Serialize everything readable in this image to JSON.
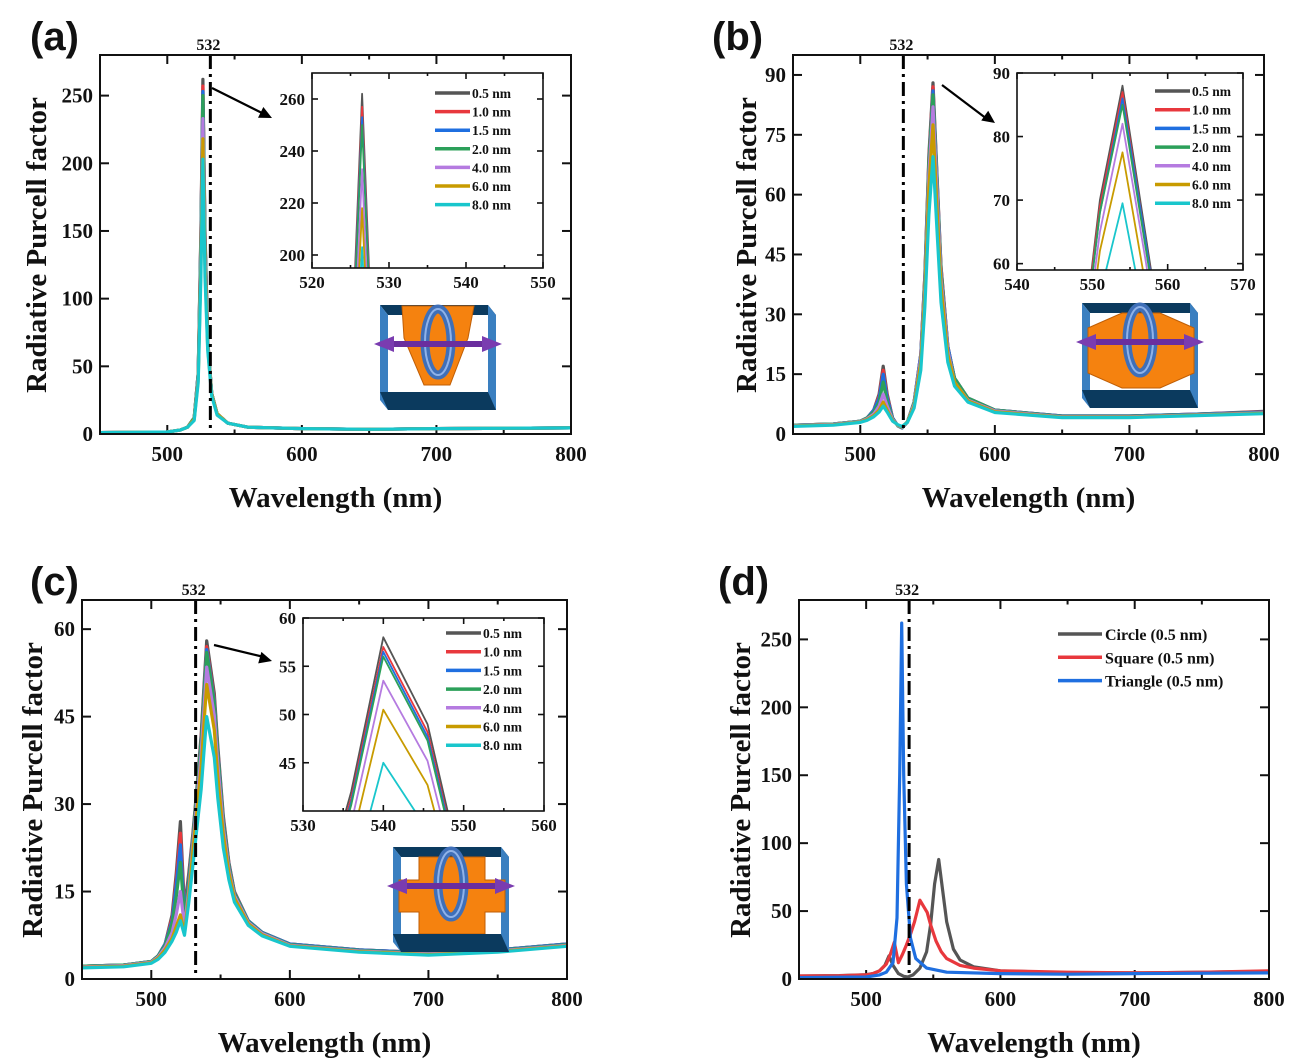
{
  "series_colors": {
    "0.5 nm": "#555555",
    "1.0 nm": "#e8383d",
    "1.5 nm": "#1f6fe0",
    "2.0 nm": "#2ca05a",
    "4.0 nm": "#b57be0",
    "6.0 nm": "#c89b00",
    "8.0 nm": "#19c6cc",
    "Circle (0.5 nm)": "#555555",
    "Square (0.5 nm)": "#e8383d",
    "Triangle (0.5 nm)": "#1f6fe0"
  },
  "chart_data": [
    {
      "panel_label": "(a)",
      "type": "line",
      "xlabel": "Wavelength (nm)",
      "ylabel": "Radiative Purcell factor",
      "xlim": [
        450,
        800
      ],
      "ylim": [
        0,
        280
      ],
      "xticks": [
        500,
        600,
        700,
        800
      ],
      "yticks": [
        0,
        50,
        100,
        150,
        200,
        250
      ],
      "vline": {
        "x": 532,
        "label": "532",
        "style": "dash-dot"
      },
      "illustration": "triangle-nanostructure-with-ring-and-dipole",
      "x": [
        450,
        500,
        510,
        515,
        520,
        523,
        525,
        526.5,
        528,
        530,
        533,
        537,
        545,
        560,
        600,
        650,
        700,
        800
      ],
      "series": [
        {
          "name": "0.5 nm",
          "values": [
            1,
            1.5,
            3,
            5,
            12,
            45,
            150,
            262,
            150,
            70,
            30,
            15,
            8,
            5,
            4,
            3.5,
            4,
            4.5
          ]
        },
        {
          "name": "1.0 nm",
          "values": [
            1,
            1.5,
            3,
            5,
            12,
            45,
            147,
            257,
            147,
            69,
            30,
            15,
            8,
            5,
            4,
            3.5,
            4,
            4.5
          ]
        },
        {
          "name": "1.5 nm",
          "values": [
            1,
            1.5,
            3,
            5,
            12,
            45,
            145,
            253,
            145,
            68,
            30,
            15,
            8,
            5,
            4,
            3.5,
            4,
            4.5
          ]
        },
        {
          "name": "2.0 nm",
          "values": [
            1,
            1.5,
            3,
            5,
            12,
            44,
            143,
            250,
            143,
            68,
            30,
            15,
            8,
            5,
            4,
            3.5,
            4,
            4.5
          ]
        },
        {
          "name": "4.0 nm",
          "values": [
            1,
            1.5,
            3,
            5,
            11,
            42,
            133,
            233,
            133,
            66,
            29,
            15,
            8,
            5,
            4,
            3.5,
            4,
            4.5
          ]
        },
        {
          "name": "6.0 nm",
          "values": [
            1,
            1.5,
            3,
            5,
            11,
            40,
            125,
            218,
            125,
            64,
            29,
            15,
            8,
            5,
            4,
            3.5,
            4,
            4.5
          ]
        },
        {
          "name": "8.0 nm",
          "values": [
            1,
            1.5,
            3,
            5,
            10,
            38,
            116,
            203,
            116,
            62,
            28,
            14,
            8,
            5,
            4,
            3.5,
            4,
            4.5
          ]
        }
      ],
      "inset": {
        "xlim": [
          520,
          550
        ],
        "ylim": [
          195,
          270
        ],
        "xticks": [
          520,
          530,
          540,
          550
        ],
        "yticks": [
          200,
          220,
          240,
          260
        ],
        "legend": "top-right"
      }
    },
    {
      "panel_label": "(b)",
      "type": "line",
      "xlabel": "Wavelength (nm)",
      "ylabel": "Radiative Purcell factor",
      "xlim": [
        450,
        800
      ],
      "ylim": [
        0,
        95
      ],
      "xticks": [
        500,
        600,
        700,
        800
      ],
      "yticks": [
        0,
        15,
        30,
        45,
        60,
        75,
        90
      ],
      "vline": {
        "x": 532,
        "label": "532",
        "style": "dash-dot"
      },
      "illustration": "circle-nanostructure-with-ring-and-dipole",
      "x": [
        450,
        480,
        500,
        505,
        510,
        514,
        517,
        520,
        524,
        528,
        531,
        535,
        540,
        545,
        548,
        551,
        554,
        557,
        560,
        565,
        570,
        580,
        600,
        650,
        700,
        750,
        800
      ],
      "series": [
        {
          "name": "0.5 nm",
          "values": [
            2.2,
            2.5,
            3.2,
            4,
            6,
            10,
            17,
            10,
            4,
            2,
            1.5,
            3,
            8,
            20,
            40,
            70,
            88,
            65,
            42,
            22,
            14,
            9,
            6,
            4.5,
            4.5,
            5,
            5.7
          ]
        },
        {
          "name": "1.0 nm",
          "values": [
            2.2,
            2.5,
            3.2,
            4,
            6,
            9.5,
            16,
            9.5,
            4,
            2,
            1.5,
            3,
            8,
            20,
            40,
            69,
            87,
            64,
            42,
            22,
            14,
            9,
            6,
            4.5,
            4.5,
            5,
            5.6
          ]
        },
        {
          "name": "1.5 nm",
          "values": [
            2.2,
            2.5,
            3.2,
            4,
            6,
            9,
            15,
            9,
            4,
            2,
            1.5,
            3,
            8,
            20,
            39,
            68,
            86,
            64,
            41,
            22,
            14,
            9,
            6,
            4.5,
            4.5,
            5,
            5.5
          ]
        },
        {
          "name": "2.0 nm",
          "values": [
            2.2,
            2.5,
            3.2,
            4,
            5.5,
            8,
            13,
            8,
            3.8,
            2,
            1.6,
            3,
            8,
            19,
            39,
            68,
            85,
            63,
            41,
            21,
            14,
            9,
            6,
            4.4,
            4.4,
            4.9,
            5.4
          ]
        },
        {
          "name": "4.0 nm",
          "values": [
            2.1,
            2.4,
            3.1,
            3.8,
            5,
            7,
            10,
            7,
            3.6,
            2.1,
            1.7,
            3,
            7.5,
            19,
            37,
            65,
            82,
            61,
            39,
            21,
            13,
            8.5,
            5.8,
            4.3,
            4.3,
            4.8,
            5.3
          ]
        },
        {
          "name": "6.0 nm",
          "values": [
            2,
            2.3,
            3,
            3.6,
            4.6,
            6,
            8,
            6,
            3.4,
            2.2,
            1.8,
            3,
            7,
            18,
            35,
            62,
            77.5,
            57,
            37,
            20,
            13,
            8.3,
            5.6,
            4.2,
            4.2,
            4.7,
            5.2
          ]
        },
        {
          "name": "8.0 nm",
          "values": [
            1.9,
            2.2,
            2.9,
            3.4,
            4.3,
            5.5,
            7,
            5.5,
            3.2,
            2.3,
            1.9,
            2.9,
            6.5,
            16,
            32,
            55,
            69.5,
            51,
            33,
            18,
            12,
            8,
            5.4,
            4.1,
            4.1,
            4.6,
            5.1
          ]
        }
      ],
      "inset": {
        "xlim": [
          540,
          570
        ],
        "ylim": [
          59,
          90
        ],
        "xticks": [
          540,
          550,
          560,
          570
        ],
        "yticks": [
          60,
          70,
          80,
          90
        ],
        "legend": "top-right"
      }
    },
    {
      "panel_label": "(c)",
      "type": "line",
      "xlabel": "Wavelength (nm)",
      "ylabel": "Radiative Purcell factor",
      "xlim": [
        450,
        800
      ],
      "ylim": [
        0,
        65
      ],
      "xticks": [
        500,
        600,
        700,
        800
      ],
      "yticks": [
        0,
        15,
        30,
        45,
        60
      ],
      "vline": {
        "x": 532,
        "label": "532",
        "style": "dash-dot"
      },
      "illustration": "square-nanostructure-with-ring-and-dipole",
      "x": [
        450,
        480,
        500,
        505,
        510,
        515,
        518,
        521,
        524,
        527,
        530,
        533,
        536,
        538,
        540,
        545.5,
        548,
        552,
        556,
        560,
        570,
        580,
        600,
        650,
        700,
        750,
        800
      ],
      "series": [
        {
          "name": "0.5 nm",
          "values": [
            2.2,
            2.4,
            3,
            4,
            6,
            11,
            18,
            27,
            12,
            18,
            25,
            33,
            42,
            50,
            58,
            49,
            40,
            28,
            20,
            15,
            10,
            8,
            6,
            5,
            4.5,
            5,
            6
          ]
        },
        {
          "name": "1.0 nm",
          "values": [
            2.2,
            2.4,
            3,
            4,
            6,
            10.5,
            17,
            25,
            11.5,
            17.5,
            24.5,
            32.5,
            41.3,
            49.2,
            57,
            48.2,
            39.3,
            27.6,
            19.8,
            14.9,
            10,
            8,
            6,
            5,
            4.5,
            5,
            6
          ]
        },
        {
          "name": "1.5 nm",
          "values": [
            2.2,
            2.4,
            3,
            4,
            6,
            10,
            16,
            23,
            11,
            17,
            24.2,
            32.2,
            40.9,
            48.7,
            56.5,
            47.7,
            39,
            27.3,
            19.6,
            14.8,
            10,
            8,
            6,
            5,
            4.5,
            5,
            6
          ]
        },
        {
          "name": "2.0 nm",
          "values": [
            2.2,
            2.4,
            3,
            4,
            5.8,
            9.5,
            14,
            20,
            10.5,
            16.5,
            24,
            32,
            40.6,
            48.3,
            56,
            47.3,
            38.6,
            27,
            19.4,
            14.7,
            9.9,
            7.9,
            5.9,
            4.9,
            4.4,
            4.9,
            5.9
          ]
        },
        {
          "name": "4.0 nm",
          "values": [
            2.1,
            2.3,
            2.9,
            3.8,
            5.4,
            8,
            11,
            15,
            9,
            15,
            23,
            30.5,
            38.7,
            46.1,
            53.5,
            45.2,
            36.9,
            26,
            18.8,
            14.3,
            9.7,
            7.8,
            5.8,
            4.8,
            4.3,
            4.8,
            5.8
          ]
        },
        {
          "name": "6.0 nm",
          "values": [
            2,
            2.2,
            2.8,
            3.6,
            5,
            7,
            9,
            11,
            8,
            14,
            22,
            29,
            36.6,
            43.6,
            50.5,
            42.7,
            34.8,
            24.8,
            18.2,
            13.9,
            9.5,
            7.6,
            5.7,
            4.7,
            4.2,
            4.7,
            5.7
          ]
        },
        {
          "name": "8.0 nm",
          "values": [
            1.9,
            2.1,
            2.7,
            3.4,
            4.6,
            6.5,
            8,
            10,
            7.5,
            13,
            19.5,
            26,
            32.6,
            38.8,
            45,
            38,
            31,
            22.5,
            17,
            13.2,
            9.2,
            7.4,
            5.6,
            4.6,
            4.1,
            4.6,
            5.6
          ]
        }
      ],
      "inset": {
        "xlim": [
          530,
          560
        ],
        "ylim": [
          40,
          60
        ],
        "xticks": [
          530,
          540,
          550,
          560
        ],
        "yticks": [
          45,
          50,
          55,
          60
        ],
        "legend": "top-right"
      }
    },
    {
      "panel_label": "(d)",
      "type": "line",
      "xlabel": "Wavelength (nm)",
      "ylabel": "Radiative Purcell factor",
      "xlim": [
        450,
        800
      ],
      "ylim": [
        0,
        279
      ],
      "xticks": [
        500,
        600,
        700,
        800
      ],
      "yticks": [
        0,
        50,
        100,
        150,
        200,
        250
      ],
      "vline": {
        "x": 532,
        "label": "532",
        "style": "dash-dot"
      },
      "legend": "top-right",
      "series": [
        {
          "name": "Circle (0.5 nm)",
          "x": [
            450,
            480,
            500,
            505,
            510,
            514,
            517,
            520,
            524,
            528,
            531,
            535,
            540,
            545,
            548,
            551,
            554,
            557,
            560,
            565,
            570,
            580,
            600,
            650,
            700,
            750,
            800
          ],
          "values": [
            2.2,
            2.5,
            3.2,
            4,
            6,
            10,
            17,
            10,
            4,
            2,
            1.5,
            3,
            8,
            20,
            40,
            70,
            88,
            65,
            42,
            22,
            14,
            9,
            6,
            4.5,
            4.5,
            5,
            5.7
          ]
        },
        {
          "name": "Square (0.5 nm)",
          "x": [
            450,
            480,
            500,
            505,
            510,
            515,
            518,
            521,
            524,
            527,
            530,
            533,
            536,
            538,
            540,
            545.5,
            548,
            552,
            556,
            560,
            570,
            580,
            600,
            650,
            700,
            750,
            800
          ],
          "values": [
            2.2,
            2.4,
            3,
            4,
            6,
            11,
            18,
            27,
            12,
            18,
            25,
            33,
            42,
            50,
            58,
            49,
            40,
            28,
            20,
            15,
            10,
            8,
            6,
            5,
            4.5,
            5,
            6
          ]
        },
        {
          "name": "Triangle (0.5 nm)",
          "x": [
            450,
            500,
            510,
            515,
            520,
            523,
            525,
            526.5,
            528,
            530,
            533,
            537,
            545,
            560,
            600,
            650,
            700,
            800
          ],
          "values": [
            1,
            1.5,
            3,
            5,
            12,
            45,
            150,
            262,
            150,
            70,
            30,
            15,
            8,
            5,
            4,
            3.5,
            4,
            4.5
          ]
        }
      ]
    }
  ]
}
